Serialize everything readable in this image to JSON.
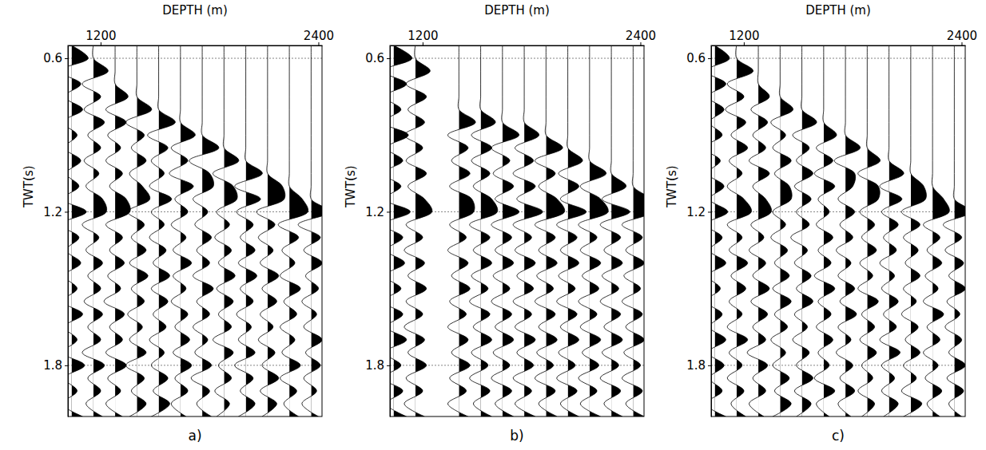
{
  "chart_data": [
    {
      "type": "wiggle",
      "title": "a)",
      "x_label": "DEPTH (m)",
      "y_label": "TWT(s)",
      "xlim": [
        1020,
        2420
      ],
      "ylim": [
        0.55,
        2.0
      ],
      "xticks": [
        1200,
        2400
      ],
      "yticks": [
        0.6,
        1.2,
        1.8
      ],
      "grid": true,
      "color": "#000000",
      "x": [
        1040,
        1160,
        1280,
        1400,
        1520,
        1640,
        1760,
        1880,
        2000,
        2120,
        2240,
        2360
      ],
      "y": [
        0.55,
        0.6,
        0.65,
        0.7,
        0.75,
        0.8,
        0.85,
        0.9,
        0.95,
        1.0,
        1.05,
        1.1,
        1.15,
        1.2,
        1.25,
        1.3,
        1.35,
        1.4,
        1.45,
        1.5,
        1.55,
        1.6,
        1.65,
        1.7,
        1.75,
        1.8,
        1.85,
        1.9,
        1.95,
        2.0
      ],
      "values": [
        [
          0,
          0.9,
          -0.7,
          0.5,
          -0.4,
          0.6,
          -0.5,
          0.3,
          -0.4,
          0.5,
          -0.3,
          0.4,
          -0.5,
          0.8,
          -0.6,
          0.4,
          -0.3,
          0.5,
          -0.4,
          0.3,
          -0.5,
          0.6,
          -0.4,
          0.3,
          -0.5,
          0.7,
          -0.4,
          0.3,
          -0.5,
          0.6
        ],
        [
          0,
          0,
          0.8,
          -0.6,
          0.4,
          -0.5,
          0.6,
          -0.3,
          0.4,
          -0.5,
          0.3,
          -0.4,
          0.5,
          0.7,
          -0.6,
          0.3,
          -0.4,
          0.5,
          -0.3,
          0.4,
          -0.5,
          0.5,
          -0.3,
          0.4,
          -0.6,
          0.6,
          -0.3,
          0.4,
          -0.4,
          0.5
        ],
        [
          0,
          0,
          0,
          0,
          0.7,
          -0.5,
          0.6,
          -0.4,
          0.3,
          -0.5,
          0.4,
          -0.3,
          0.6,
          0.8,
          -0.5,
          0.4,
          -0.3,
          0.5,
          -0.4,
          0.3,
          -0.6,
          0.5,
          -0.3,
          0.4,
          -0.5,
          0.6,
          -0.4,
          0.3,
          -0.5,
          0.4
        ],
        [
          0,
          0,
          0,
          0,
          0,
          0.8,
          -0.6,
          0.4,
          -0.3,
          0.5,
          -0.4,
          0.3,
          0.7,
          -0.5,
          0.4,
          -0.3,
          0.5,
          -0.4,
          0.6,
          -0.3,
          0.4,
          -0.5,
          0.3,
          -0.4,
          0.5,
          -0.6,
          0.4,
          -0.3,
          0.5,
          -0.4
        ],
        [
          0,
          0,
          0,
          0,
          0,
          0,
          0.9,
          -0.6,
          0.5,
          -0.4,
          0.3,
          -0.5,
          0.7,
          -0.4,
          0.3,
          -0.5,
          0.4,
          -0.3,
          0.6,
          -0.4,
          0.5,
          -0.3,
          0.4,
          -0.5,
          0.3,
          -0.4,
          0.5,
          -0.3,
          0.6,
          -0.4
        ],
        [
          0,
          0,
          0,
          0,
          0,
          0,
          0,
          0.8,
          -0.5,
          0.4,
          -0.6,
          0.7,
          -0.3,
          0.4,
          -0.5,
          0.3,
          -0.4,
          0.6,
          -0.4,
          0.3,
          -0.5,
          0.4,
          -0.3,
          0.5,
          -0.4,
          0.6,
          -0.3,
          0.4,
          -0.5,
          0.3
        ],
        [
          0,
          0,
          0,
          0,
          0,
          0,
          0,
          0,
          0.9,
          -0.7,
          0.4,
          0.6,
          -0.5,
          0.3,
          -0.4,
          0.5,
          -0.3,
          0.4,
          -0.5,
          0.6,
          -0.3,
          0.4,
          -0.5,
          0.3,
          -0.4,
          0.5,
          -0.6,
          0.4,
          -0.3,
          0.5
        ],
        [
          0,
          0,
          0,
          0,
          0,
          0,
          0,
          0,
          0,
          0.8,
          -0.6,
          0.5,
          0.7,
          -0.4,
          0.3,
          -0.5,
          0.4,
          -0.3,
          0.6,
          -0.4,
          0.5,
          -0.3,
          0.4,
          -0.6,
          0.5,
          -0.3,
          0.4,
          -0.5,
          0.3,
          -0.4
        ],
        [
          0,
          0,
          0,
          0,
          0,
          0,
          0,
          0,
          0,
          0,
          0.9,
          -0.6,
          0.8,
          -0.5,
          0.4,
          -0.3,
          0.5,
          -0.4,
          0.6,
          -0.3,
          0.4,
          -0.5,
          0.3,
          -0.4,
          0.5,
          -0.6,
          0.4,
          -0.3,
          0.5,
          -0.4
        ],
        [
          0,
          0,
          0,
          0,
          0,
          0,
          0,
          0,
          0,
          0,
          0,
          0.8,
          0.9,
          -0.6,
          0.4,
          -0.5,
          0.3,
          -0.4,
          0.6,
          -0.3,
          0.5,
          -0.4,
          0.3,
          -0.5,
          0.4,
          -0.3,
          0.6,
          -0.4,
          0.5,
          -0.3
        ],
        [
          0,
          0,
          0,
          0,
          0,
          0,
          0,
          0,
          0,
          0,
          0,
          0,
          0.7,
          1.0,
          -0.6,
          0.5,
          -0.4,
          0.3,
          -0.5,
          0.6,
          -0.3,
          0.4,
          -0.5,
          0.3,
          -0.4,
          0.6,
          -0.5,
          0.4,
          -0.3,
          0.5
        ],
        [
          0,
          0,
          0,
          0,
          0,
          0,
          0,
          0,
          0,
          0,
          0,
          0,
          0,
          1.0,
          -0.7,
          0.5,
          -0.4,
          0.6,
          -0.3,
          0.4,
          -0.5,
          0.3,
          -0.4,
          0.6,
          -0.3,
          0.5,
          -0.4,
          0.3,
          -0.5,
          0.4
        ]
      ]
    },
    {
      "type": "wiggle",
      "title": "b)",
      "x_label": "DEPTH (m)",
      "y_label": "TWT(s)",
      "xlim": [
        1020,
        2420
      ],
      "ylim": [
        0.55,
        2.0
      ],
      "xticks": [
        1200,
        2400
      ],
      "yticks": [
        0.6,
        1.2,
        1.8
      ],
      "grid": true,
      "color": "#000000",
      "x": [
        1040,
        1160,
        1400,
        1520,
        1640,
        1760,
        1880,
        2000,
        2120,
        2240,
        2360
      ],
      "y": [
        0.55,
        0.6,
        0.65,
        0.7,
        0.75,
        0.8,
        0.85,
        0.9,
        0.95,
        1.0,
        1.05,
        1.1,
        1.15,
        1.2,
        1.25,
        1.3,
        1.35,
        1.4,
        1.45,
        1.5,
        1.55,
        1.6,
        1.65,
        1.7,
        1.75,
        1.8,
        1.85,
        1.9,
        1.95,
        2.0
      ],
      "values": [
        [
          0,
          1.0,
          -0.6,
          0.7,
          -0.5,
          0.4,
          -0.6,
          0.8,
          -0.4,
          0.5,
          -0.6,
          0.4,
          -0.5,
          0.9,
          -0.6,
          0.5,
          -0.4,
          0.6,
          -0.5,
          0.4,
          -0.6,
          0.5,
          -0.4,
          0.7,
          -0.5,
          0.4,
          -0.6,
          0.5,
          -0.4,
          0.7
        ],
        [
          0,
          0,
          0.8,
          -0.5,
          0.6,
          -0.4,
          0.5,
          -0.6,
          0.4,
          -0.5,
          0.6,
          -0.4,
          0.5,
          0.9,
          -0.5,
          0.4,
          -0.6,
          0.5,
          -0.4,
          0.6,
          -0.5,
          0.4,
          -0.6,
          0.5,
          -0.4,
          0.6,
          -0.5,
          0.4,
          -0.6,
          0.5
        ],
        [
          0,
          0,
          0,
          0,
          0,
          0,
          0.9,
          -0.6,
          0.5,
          -0.4,
          0.6,
          -0.5,
          0.7,
          0.8,
          -0.5,
          0.4,
          -0.6,
          0.5,
          -0.4,
          0.6,
          -0.5,
          0.4,
          -0.6,
          0.5,
          -0.4,
          0.6,
          -0.5,
          0.4,
          -0.6,
          0.5
        ],
        [
          0,
          0,
          0,
          0,
          0,
          0,
          0.8,
          -0.5,
          0.6,
          -0.5,
          0.5,
          -0.4,
          0.6,
          0.9,
          -0.6,
          0.5,
          -0.4,
          0.6,
          -0.5,
          0.4,
          -0.6,
          0.5,
          -0.4,
          0.6,
          -0.5,
          0.4,
          -0.6,
          0.5,
          -0.4,
          0.6
        ],
        [
          0,
          0,
          0,
          0,
          0,
          0,
          0,
          0.9,
          -0.6,
          0.4,
          -0.5,
          0.6,
          -0.4,
          0.9,
          -0.6,
          0.5,
          -0.4,
          0.6,
          -0.5,
          0.4,
          -0.6,
          0.5,
          -0.4,
          0.6,
          -0.5,
          0.4,
          -0.6,
          0.5,
          -0.4,
          0.6
        ],
        [
          0,
          0,
          0,
          0,
          0,
          0,
          0,
          0.8,
          -0.5,
          0.5,
          -0.6,
          0.6,
          -0.4,
          1.0,
          -0.6,
          0.4,
          -0.5,
          0.6,
          -0.4,
          0.5,
          -0.6,
          0.4,
          -0.5,
          0.6,
          -0.4,
          0.5,
          -0.6,
          0.4,
          -0.5,
          0.6
        ],
        [
          0,
          0,
          0,
          0,
          0,
          0,
          0,
          0,
          0.9,
          -0.6,
          0.5,
          -0.4,
          0.6,
          1.0,
          -0.6,
          0.5,
          -0.4,
          0.6,
          -0.5,
          0.4,
          -0.6,
          0.5,
          -0.4,
          0.6,
          -0.5,
          0.4,
          -0.6,
          0.5,
          -0.4,
          0.6
        ],
        [
          0,
          0,
          0,
          0,
          0,
          0,
          0,
          0,
          0,
          0.8,
          -0.5,
          0.6,
          -0.4,
          1.0,
          -0.6,
          0.5,
          -0.4,
          0.6,
          -0.5,
          0.4,
          -0.6,
          0.5,
          -0.4,
          0.6,
          -0.5,
          0.4,
          -0.6,
          0.5,
          -0.4,
          0.6
        ],
        [
          0,
          0,
          0,
          0,
          0,
          0,
          0,
          0,
          0,
          0,
          0.9,
          -0.5,
          0.6,
          1.0,
          -0.6,
          0.4,
          -0.5,
          0.6,
          -0.4,
          0.5,
          -0.6,
          0.4,
          -0.5,
          0.6,
          -0.4,
          0.5,
          -0.6,
          0.4,
          -0.5,
          0.6
        ],
        [
          0,
          0,
          0,
          0,
          0,
          0,
          0,
          0,
          0,
          0,
          0,
          0.8,
          -0.5,
          1.0,
          -0.6,
          0.5,
          -0.4,
          0.6,
          -0.5,
          0.4,
          -0.6,
          0.5,
          -0.4,
          0.6,
          -0.5,
          0.4,
          -0.6,
          0.5,
          -0.4,
          0.6
        ],
        [
          0,
          0,
          0,
          0,
          0,
          0,
          0,
          0,
          0,
          0,
          0,
          0,
          0.9,
          1.0,
          -0.6,
          0.5,
          -0.4,
          0.6,
          -0.5,
          0.4,
          -0.6,
          0.5,
          -0.4,
          0.6,
          -0.5,
          0.4,
          -0.6,
          0.5,
          -0.4,
          0.6
        ]
      ]
    },
    {
      "type": "wiggle",
      "title": "c)",
      "x_label": "DEPTH (m)",
      "y_label": "TWT(s)",
      "xlim": [
        1020,
        2420
      ],
      "ylim": [
        0.55,
        2.0
      ],
      "xticks": [
        1200,
        2400
      ],
      "yticks": [
        0.6,
        1.2,
        1.8
      ],
      "grid": true,
      "color": "#000000",
      "x": [
        1040,
        1160,
        1280,
        1400,
        1520,
        1640,
        1760,
        1880,
        2000,
        2120,
        2240,
        2360
      ],
      "y": [
        0.55,
        0.6,
        0.65,
        0.7,
        0.75,
        0.8,
        0.85,
        0.9,
        0.95,
        1.0,
        1.05,
        1.1,
        1.15,
        1.2,
        1.25,
        1.3,
        1.35,
        1.4,
        1.45,
        1.5,
        1.55,
        1.6,
        1.65,
        1.7,
        1.75,
        1.8,
        1.85,
        1.9,
        1.95,
        2.0
      ],
      "values": [
        [
          0,
          0.8,
          -0.5,
          0.6,
          -0.4,
          0.5,
          -0.3,
          0.4,
          -0.6,
          0.3,
          -0.4,
          0.5,
          -0.3,
          0.7,
          -0.5,
          0.4,
          -0.3,
          0.6,
          -0.4,
          0.3,
          -0.5,
          0.4,
          -0.3,
          0.6,
          -0.4,
          0.5,
          -0.3,
          0.4,
          -0.5,
          0.6
        ],
        [
          0,
          0,
          0.9,
          -0.5,
          0.4,
          -0.6,
          0.5,
          -0.3,
          0.6,
          -0.4,
          0.3,
          -0.5,
          0.4,
          0.8,
          -0.5,
          0.3,
          -0.4,
          0.6,
          -0.3,
          0.5,
          -0.4,
          0.3,
          -0.5,
          0.6,
          -0.4,
          0.3,
          -0.5,
          0.4,
          -0.3,
          0.5
        ],
        [
          0,
          0,
          0,
          0,
          0.6,
          -0.4,
          0.5,
          -0.3,
          0.4,
          -0.5,
          0.6,
          -0.3,
          0.4,
          0.7,
          -0.4,
          0.3,
          -0.5,
          0.4,
          -0.3,
          0.6,
          -0.4,
          0.5,
          -0.3,
          0.4,
          -0.6,
          0.5,
          -0.3,
          0.4,
          -0.5,
          0.3
        ],
        [
          0,
          0,
          0,
          0,
          0,
          0.7,
          -0.5,
          0.3,
          -0.4,
          0.6,
          -0.3,
          0.5,
          0.6,
          -0.4,
          0.3,
          -0.5,
          0.4,
          -0.3,
          0.5,
          -0.4,
          0.6,
          -0.3,
          0.4,
          -0.5,
          0.3,
          -0.4,
          0.5,
          -0.3,
          0.6,
          -0.4
        ],
        [
          0,
          0,
          0,
          0,
          0,
          0,
          0.8,
          -0.5,
          0.4,
          -0.3,
          0.6,
          -0.4,
          0.5,
          -0.3,
          0.4,
          -0.6,
          0.3,
          -0.4,
          0.5,
          -0.3,
          0.6,
          -0.4,
          0.3,
          -0.5,
          0.4,
          -0.3,
          0.6,
          -0.4,
          0.5,
          -0.3
        ],
        [
          0,
          0,
          0,
          0,
          0,
          0,
          0,
          0.7,
          -0.4,
          0.5,
          -0.5,
          0.6,
          -0.3,
          0.3,
          -0.4,
          0.5,
          -0.3,
          0.4,
          -0.5,
          0.6,
          -0.3,
          0.4,
          -0.4,
          0.5,
          -0.3,
          0.3,
          -0.5,
          0.6,
          -0.4,
          0.3
        ],
        [
          0,
          0,
          0,
          0,
          0,
          0,
          0,
          0,
          0.8,
          -0.6,
          0.5,
          0.4,
          -0.4,
          0.5,
          -0.3,
          0.4,
          -0.5,
          0.3,
          -0.4,
          0.5,
          -0.3,
          0.6,
          -0.4,
          0.3,
          -0.5,
          0.4,
          -0.3,
          0.5,
          -0.4,
          0.3
        ],
        [
          0,
          0,
          0,
          0,
          0,
          0,
          0,
          0,
          0,
          0.7,
          -0.5,
          0.6,
          0.6,
          -0.4,
          0.4,
          -0.3,
          0.5,
          -0.4,
          0.3,
          -0.5,
          0.6,
          -0.3,
          0.4,
          -0.4,
          0.5,
          -0.3,
          0.3,
          -0.5,
          0.4,
          -0.3
        ],
        [
          0,
          0,
          0,
          0,
          0,
          0,
          0,
          0,
          0,
          0,
          0.8,
          -0.5,
          0.7,
          -0.4,
          0.5,
          -0.3,
          0.4,
          -0.5,
          0.3,
          -0.4,
          0.5,
          -0.3,
          0.4,
          -0.5,
          0.6,
          -0.4,
          0.3,
          -0.4,
          0.5,
          -0.3
        ],
        [
          0,
          0,
          0,
          0,
          0,
          0,
          0,
          0,
          0,
          0,
          0,
          0.7,
          0.8,
          -0.5,
          0.5,
          -0.4,
          0.4,
          -0.3,
          0.5,
          -0.4,
          0.3,
          -0.5,
          0.4,
          -0.3,
          0.5,
          -0.4,
          0.3,
          -0.5,
          0.6,
          -0.4
        ],
        [
          0,
          0,
          0,
          0,
          0,
          0,
          0,
          0,
          0,
          0,
          0,
          0,
          0.6,
          0.9,
          -0.5,
          0.4,
          -0.3,
          0.5,
          -0.4,
          0.3,
          -0.5,
          0.6,
          -0.3,
          0.4,
          -0.5,
          0.3,
          -0.4,
          0.5,
          -0.3,
          0.4
        ],
        [
          0,
          0,
          0,
          0,
          0,
          0,
          0,
          0,
          0,
          0,
          0,
          0,
          0,
          0.9,
          -0.6,
          0.4,
          -0.5,
          0.5,
          -0.3,
          0.6,
          -0.4,
          0.3,
          -0.5,
          0.4,
          -0.3,
          0.6,
          -0.4,
          0.5,
          -0.3,
          0.4
        ]
      ]
    }
  ]
}
